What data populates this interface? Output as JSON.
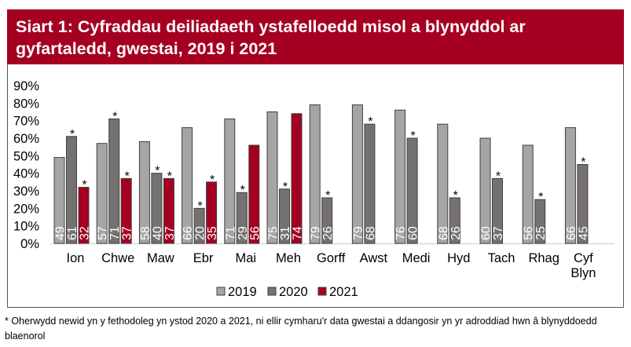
{
  "chart_data": {
    "type": "bar",
    "title": "Siart 1: Cyfraddau deiliadaeth ystafelloedd misol a blynyddol ar gyfartaledd, gwestai, 2019 i 2021",
    "categories": [
      "Ion",
      "Chwe",
      "Maw",
      "Ebr",
      "Mai",
      "Meh",
      "Gorff",
      "Awst",
      "Medi",
      "Hyd",
      "Tach",
      "Rhag",
      "Cyf Blyn"
    ],
    "series": [
      {
        "name": "2019",
        "color": "#a5a5a5",
        "values": [
          49,
          57,
          58,
          66,
          71,
          75,
          79,
          79,
          76,
          68,
          60,
          56,
          66
        ],
        "asterisk": [
          false,
          false,
          false,
          false,
          false,
          false,
          false,
          false,
          false,
          false,
          false,
          false,
          false
        ]
      },
      {
        "name": "2020",
        "color": "#767171",
        "values": [
          61,
          71,
          40,
          20,
          29,
          31,
          26,
          68,
          60,
          26,
          37,
          25,
          45
        ],
        "asterisk": [
          true,
          true,
          true,
          true,
          true,
          true,
          true,
          true,
          true,
          true,
          true,
          true,
          true
        ]
      },
      {
        "name": "2021",
        "color": "#a50021",
        "values": [
          32,
          37,
          37,
          35,
          56,
          74,
          null,
          null,
          null,
          null,
          null,
          null,
          null
        ],
        "asterisk": [
          true,
          true,
          true,
          true,
          false,
          false,
          false,
          false,
          false,
          false,
          false,
          false,
          false
        ]
      }
    ],
    "ylim": [
      0,
      90
    ],
    "yticks": [
      "0%",
      "10%",
      "20%",
      "30%",
      "40%",
      "50%",
      "60%",
      "70%",
      "80%",
      "90%"
    ],
    "grid": false,
    "legend": "bottom",
    "asterisk_symbol": "*"
  },
  "footnote": "* Oherwydd newid yn y fethodoleg yn ystod 2020 a 2021, ni ellir cymharu'r data gwestai a ddangosir yn yr adroddiad hwn â blynyddoedd blaenorol"
}
